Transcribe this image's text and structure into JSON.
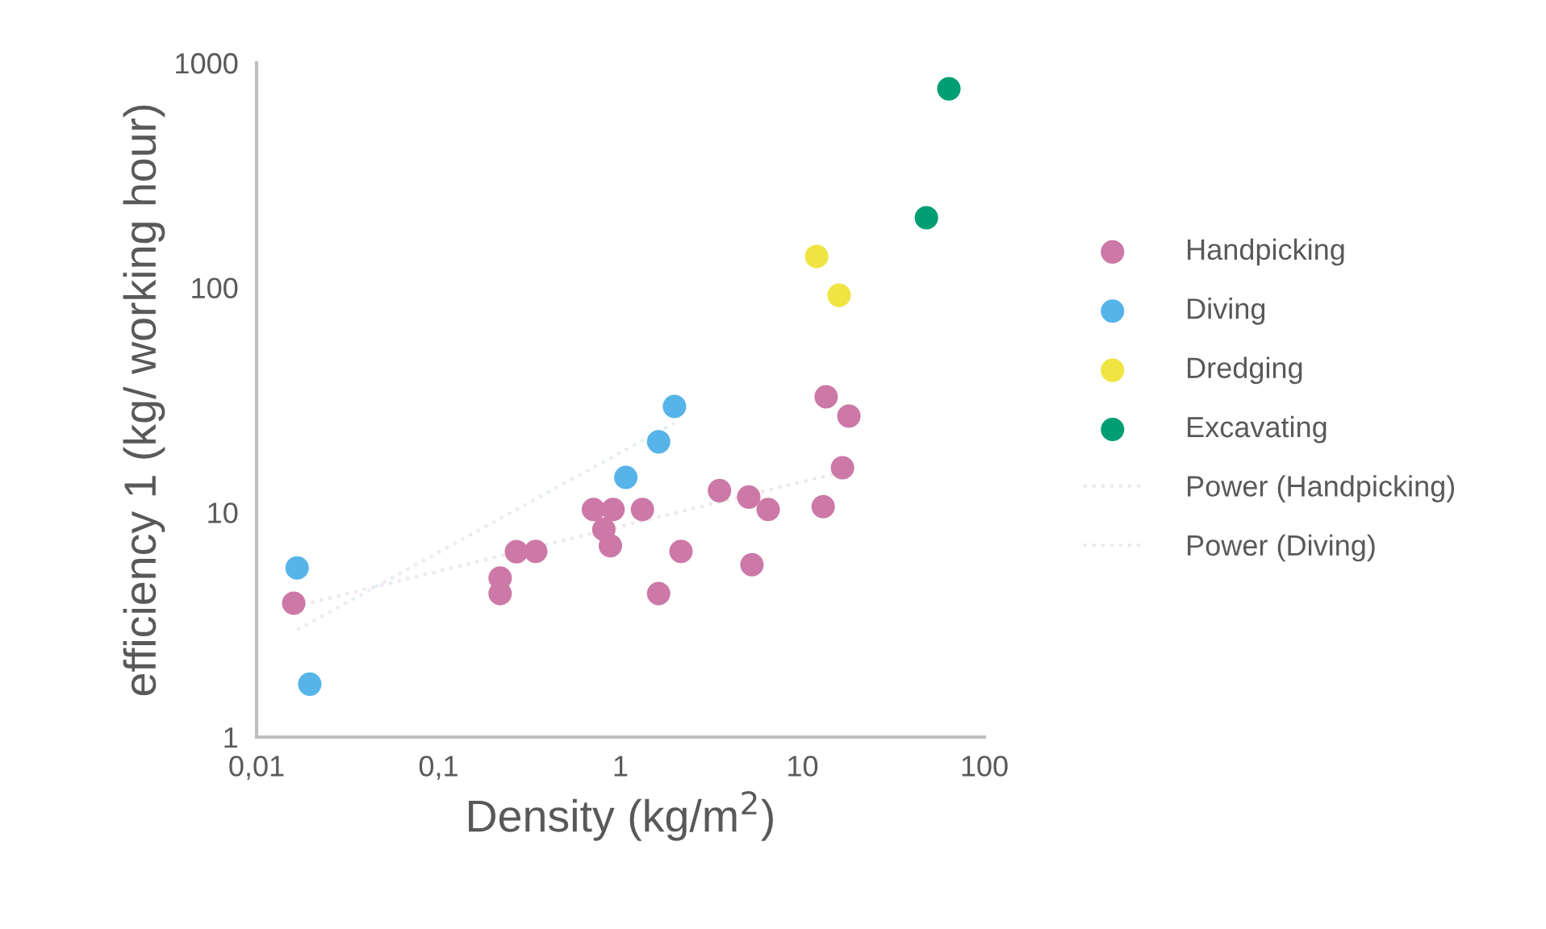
{
  "chart_data": {
    "type": "scatter",
    "xlabel": "Density (kg/m$^{2}$)",
    "ylabel": "efficiency 1 (kg/ working hour)",
    "log": "xy",
    "xlim": [
      0.01,
      100
    ],
    "ylim": [
      1,
      1000
    ],
    "xticks": [
      {
        "value": 0.01,
        "label": "0,01"
      },
      {
        "value": 0.1,
        "label": "0,1"
      },
      1,
      10,
      100
    ],
    "yticks": [
      1,
      10,
      100,
      1000
    ],
    "grid": false,
    "legend": "right",
    "marker": "circle",
    "series": [
      {
        "name": "Handpicking",
        "color": "#cc79a7",
        "x": [
          0.016,
          0.218,
          0.218,
          0.268,
          0.342,
          0.71,
          0.91,
          0.81,
          0.88,
          1.32,
          1.62,
          2.15,
          3.5,
          5.07,
          5.28,
          6.48,
          13.0,
          13.5,
          18.0,
          16.6
        ],
        "values": [
          3.94,
          5.1,
          4.35,
          6.68,
          6.7,
          10.3,
          10.3,
          8.4,
          7.1,
          10.3,
          4.35,
          6.7,
          12.5,
          11.7,
          5.85,
          10.3,
          10.6,
          32.7,
          26.8,
          15.8
        ]
      },
      {
        "name": "Diving",
        "color": "#56b4e9",
        "x": [
          0.0167,
          0.0196,
          1.07,
          1.62,
          1.98
        ],
        "values": [
          5.66,
          1.72,
          14.3,
          20.6,
          29.6
        ]
      },
      {
        "name": "Dredging",
        "color": "#f0e442",
        "x": [
          11.97,
          15.9
        ],
        "values": [
          137.6,
          92.5
        ]
      },
      {
        "name": "Excavating",
        "color": "#009e73",
        "x": [
          48,
          63.8
        ],
        "values": [
          204.7,
          767
        ]
      },
      {
        "name": "Power (Handpicking)",
        "type": "line",
        "line_style": "dotted",
        "marker": "none",
        "color": "#f0e6f0",
        "x": [
          0.016,
          18.0
        ],
        "values": [
          3.8,
          15.4
        ]
      },
      {
        "name": "Power (Diving)",
        "type": "line",
        "line_style": "dotted",
        "marker": "none",
        "color": "#e6eef4",
        "x": [
          0.0167,
          1.98
        ],
        "values": [
          3.0,
          25
        ]
      }
    ]
  }
}
